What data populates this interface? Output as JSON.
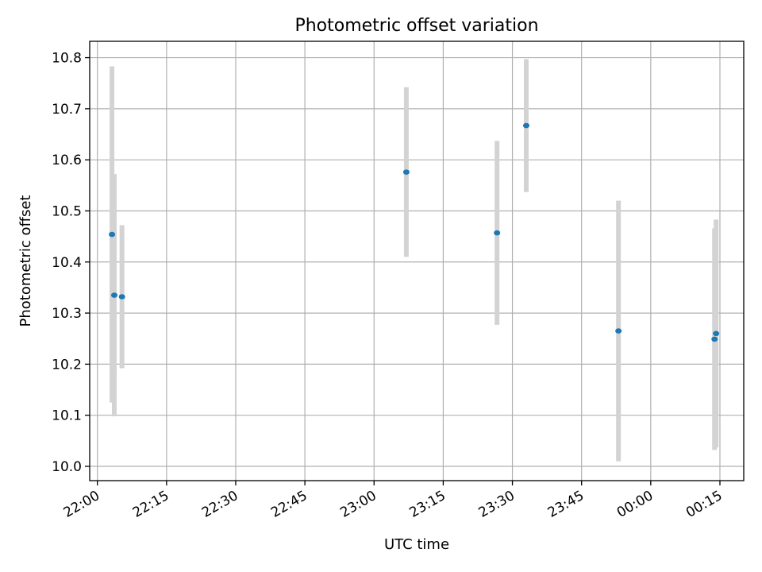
{
  "chart_data": {
    "type": "scatter",
    "title": "Photometric offset variation",
    "xlabel": "UTC time",
    "ylabel": "Photometric offset",
    "xlim": [
      "21:58:20",
      "00:20:10"
    ],
    "ylim": [
      9.972,
      10.832
    ],
    "grid": true,
    "x_ticks": [
      "22:00",
      "22:15",
      "22:30",
      "22:45",
      "23:00",
      "23:15",
      "23:30",
      "23:45",
      "00:00",
      "00:15"
    ],
    "y_ticks": [
      "10.0",
      "10.1",
      "10.2",
      "10.3",
      "10.4",
      "10.5",
      "10.6",
      "10.7",
      "10.8"
    ],
    "series": [
      {
        "marker_color": "#1f77b4",
        "errorbar_color": "#d3d3d3",
        "points": [
          {
            "x": "22:03:10",
            "y": 10.454,
            "yerr": 0.329
          },
          {
            "x": "22:03:40",
            "y": 10.335,
            "yerr": 0.237
          },
          {
            "x": "22:05:20",
            "y": 10.332,
            "yerr": 0.14
          },
          {
            "x": "23:07:00",
            "y": 10.576,
            "yerr": 0.166
          },
          {
            "x": "23:26:40",
            "y": 10.457,
            "yerr": 0.18
          },
          {
            "x": "23:33:00",
            "y": 10.667,
            "yerr": 0.13
          },
          {
            "x": "23:53:00",
            "y": 10.265,
            "yerr": 0.255
          },
          {
            "x": "00:13:50",
            "y": 10.249,
            "yerr": 0.217
          },
          {
            "x": "00:14:10",
            "y": 10.26,
            "yerr": 0.223
          }
        ]
      }
    ]
  }
}
